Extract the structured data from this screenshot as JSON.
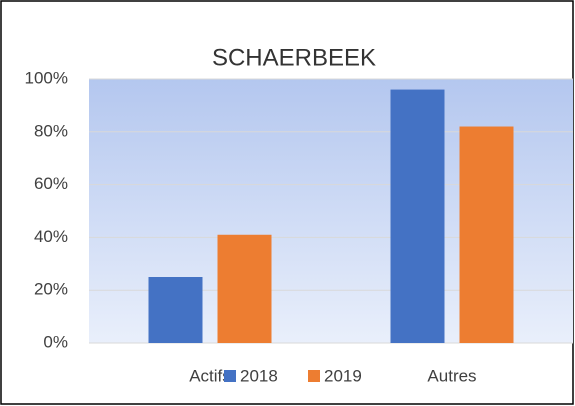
{
  "chart_data": {
    "type": "bar",
    "title": "SCHAERBEEK",
    "categories": [
      "Actifs",
      "Autres"
    ],
    "series": [
      {
        "name": "2018",
        "color": "#4472c4",
        "values": [
          25,
          96
        ]
      },
      {
        "name": "2019",
        "color": "#ed7d31",
        "values": [
          41,
          82
        ]
      }
    ],
    "ylim": [
      0,
      100
    ],
    "yticks": [
      {
        "value": 0,
        "label": "0%"
      },
      {
        "value": 20,
        "label": "20%"
      },
      {
        "value": 40,
        "label": "40%"
      },
      {
        "value": 60,
        "label": "60%"
      },
      {
        "value": 80,
        "label": "80%"
      },
      {
        "value": 100,
        "label": "100%"
      }
    ],
    "grid": true,
    "legend": "bottom"
  }
}
